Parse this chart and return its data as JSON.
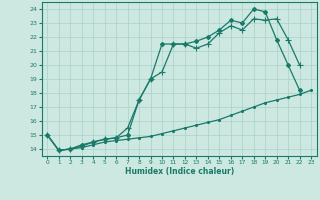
{
  "xlabel": "Humidex (Indice chaleur)",
  "ylabel": "",
  "bg_color": "#cce8e0",
  "grid_color": "#aad0c8",
  "line_color": "#1a7a6a",
  "xlim": [
    -0.5,
    23.5
  ],
  "ylim": [
    13.5,
    24.5
  ],
  "xticks": [
    0,
    1,
    2,
    3,
    4,
    5,
    6,
    7,
    8,
    9,
    10,
    11,
    12,
    13,
    14,
    15,
    16,
    17,
    18,
    19,
    20,
    21,
    22,
    23
  ],
  "yticks": [
    14,
    15,
    16,
    17,
    18,
    19,
    20,
    21,
    22,
    23,
    24
  ],
  "line1_x": [
    0,
    1,
    2,
    3,
    4,
    5,
    6,
    7,
    8,
    9,
    10,
    11,
    12,
    13,
    14,
    15,
    16,
    17,
    18,
    19,
    20,
    21,
    22,
    23
  ],
  "line1_y": [
    15.0,
    13.9,
    14.0,
    14.1,
    14.3,
    14.5,
    14.6,
    14.7,
    14.8,
    14.9,
    15.1,
    15.3,
    15.5,
    15.7,
    15.9,
    16.1,
    16.4,
    16.7,
    17.0,
    17.3,
    17.5,
    17.7,
    17.9,
    18.2
  ],
  "line2_x": [
    0,
    1,
    2,
    3,
    4,
    5,
    6,
    7,
    8,
    9,
    10,
    11,
    12,
    13,
    14,
    15,
    16,
    17,
    18,
    19,
    20,
    21,
    22
  ],
  "line2_y": [
    15.0,
    13.9,
    14.0,
    14.2,
    14.5,
    14.7,
    14.8,
    15.5,
    17.5,
    19.0,
    19.5,
    21.5,
    21.5,
    21.2,
    21.5,
    22.3,
    22.8,
    22.5,
    23.3,
    23.2,
    23.3,
    21.8,
    20.0
  ],
  "line3_x": [
    0,
    1,
    2,
    3,
    4,
    5,
    6,
    7,
    8,
    9,
    10,
    11,
    12,
    13,
    14,
    15,
    16,
    17,
    18,
    19,
    20,
    21,
    22,
    23
  ],
  "line3_y": [
    15.0,
    13.9,
    14.0,
    14.3,
    14.5,
    14.7,
    14.8,
    15.0,
    17.5,
    19.0,
    21.5,
    21.5,
    21.5,
    21.7,
    22.0,
    22.5,
    23.2,
    23.0,
    24.0,
    23.8,
    21.8,
    20.0,
    18.2,
    null
  ]
}
